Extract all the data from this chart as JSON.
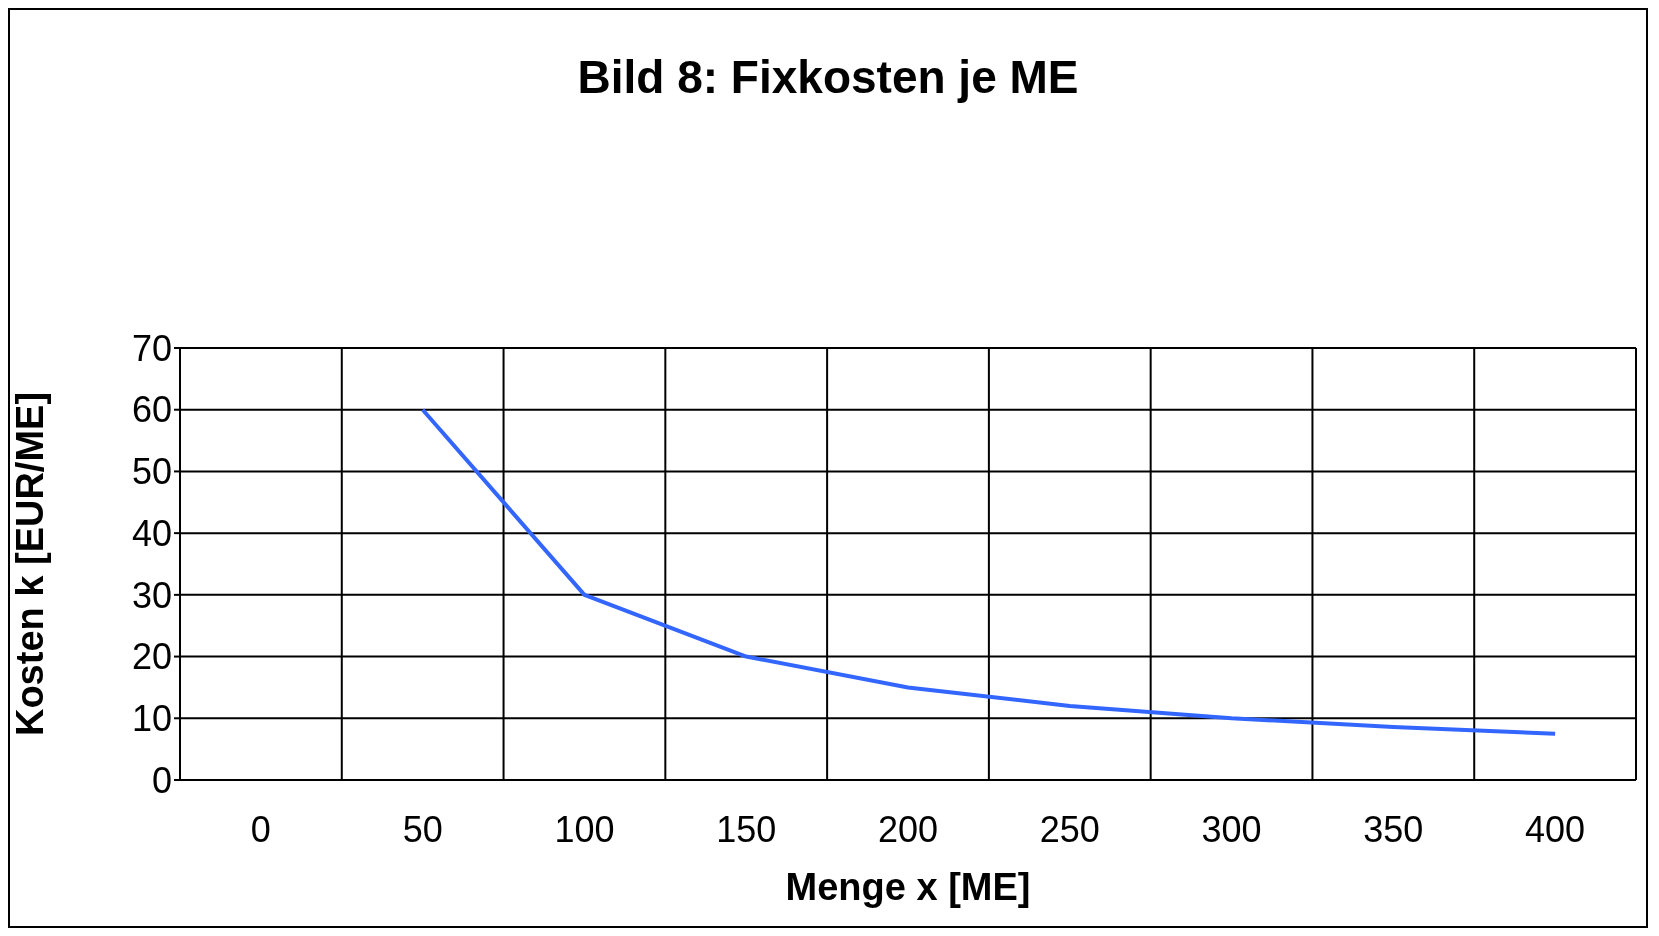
{
  "chart_data": {
    "type": "line",
    "title": "Bild 8:  Fixkosten je ME",
    "xlabel": "Menge x [ME]",
    "ylabel": "Kosten k [EUR/ME]",
    "categories": [
      "0",
      "50",
      "100",
      "150",
      "200",
      "250",
      "300",
      "350",
      "400"
    ],
    "series": [
      {
        "color": "#3366ff",
        "values": [
          null,
          60,
          30,
          20,
          15,
          12,
          10,
          8.6,
          7.5
        ]
      }
    ],
    "ylim": [
      0,
      70
    ],
    "yticks": [
      0,
      10,
      20,
      30,
      40,
      50,
      60,
      70
    ],
    "grid": true,
    "marker": "none"
  }
}
